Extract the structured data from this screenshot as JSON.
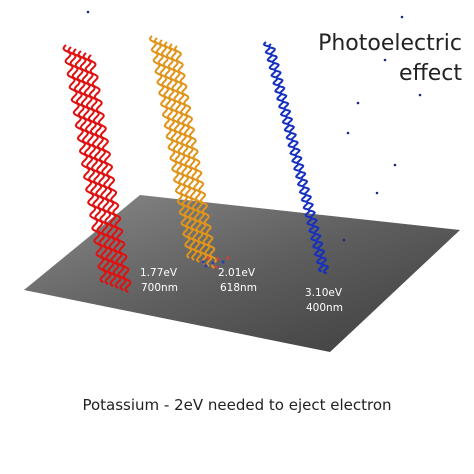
{
  "title": {
    "line1": "Photoelectric",
    "line2": "effect"
  },
  "beams": [
    {
      "energy": "1.77eV",
      "wavelength": "700nm"
    },
    {
      "energy": "2.01eV",
      "wavelength": "618nm"
    },
    {
      "energy": "3.10eV",
      "wavelength": "400nm"
    }
  ],
  "caption": "Potassium - 2eV needed to eject electron"
}
